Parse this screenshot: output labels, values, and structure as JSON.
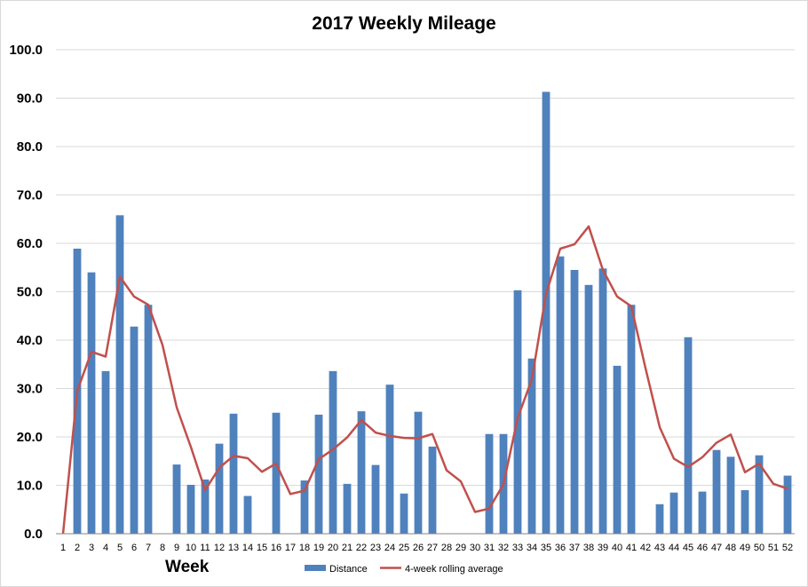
{
  "chart_data": {
    "type": "bar",
    "title": "2017 Weekly Mileage",
    "xlabel": "Week",
    "ylabel": "",
    "ylim": [
      0,
      100
    ],
    "yticks": [
      "0.0",
      "10.0",
      "20.0",
      "30.0",
      "40.0",
      "50.0",
      "60.0",
      "70.0",
      "80.0",
      "90.0",
      "100.0"
    ],
    "grid": true,
    "legend_position": "bottom",
    "categories": [
      "1",
      "2",
      "3",
      "4",
      "5",
      "6",
      "7",
      "8",
      "9",
      "10",
      "11",
      "12",
      "13",
      "14",
      "15",
      "16",
      "17",
      "18",
      "19",
      "20",
      "21",
      "22",
      "23",
      "24",
      "25",
      "26",
      "27",
      "28",
      "29",
      "30",
      "31",
      "32",
      "33",
      "34",
      "35",
      "36",
      "37",
      "38",
      "39",
      "40",
      "41",
      "42",
      "43",
      "44",
      "45",
      "46",
      "47",
      "48",
      "49",
      "50",
      "51",
      "52"
    ],
    "series": [
      {
        "name": "Distance",
        "type": "bar",
        "color": "#4f81bd",
        "values": [
          0,
          58.9,
          54.0,
          33.6,
          65.8,
          42.8,
          47.3,
          0,
          14.3,
          10.1,
          11.2,
          18.6,
          24.8,
          7.8,
          0,
          25.0,
          0,
          11.0,
          24.6,
          33.6,
          10.3,
          25.3,
          14.2,
          30.8,
          8.3,
          25.2,
          18.0,
          0,
          0,
          0,
          20.6,
          20.6,
          50.3,
          36.2,
          91.3,
          57.3,
          54.5,
          51.4,
          54.8,
          34.7,
          47.3,
          0,
          6.1,
          8.5,
          40.6,
          8.7,
          17.3,
          15.9,
          9.0,
          16.2,
          0,
          12.0
        ]
      },
      {
        "name": "4-week rolling average",
        "type": "line",
        "color": "#c0504d",
        "values": [
          0,
          29.5,
          37.6,
          36.6,
          53.1,
          49.0,
          47.3,
          39.0,
          26.1,
          17.9,
          9.0,
          13.6,
          16.1,
          15.6,
          12.8,
          14.5,
          8.2,
          8.9,
          15.4,
          17.4,
          19.9,
          23.5,
          20.9,
          20.2,
          19.8,
          19.7,
          20.6,
          13.1,
          10.8,
          4.5,
          5.2,
          10.2,
          23.9,
          31.9,
          49.6,
          58.9,
          59.8,
          63.5,
          54.5,
          49.0,
          47.0,
          34.2,
          22.0,
          15.5,
          13.8,
          15.8,
          18.8,
          20.5,
          12.7,
          14.5,
          10.3,
          9.3
        ]
      }
    ]
  }
}
